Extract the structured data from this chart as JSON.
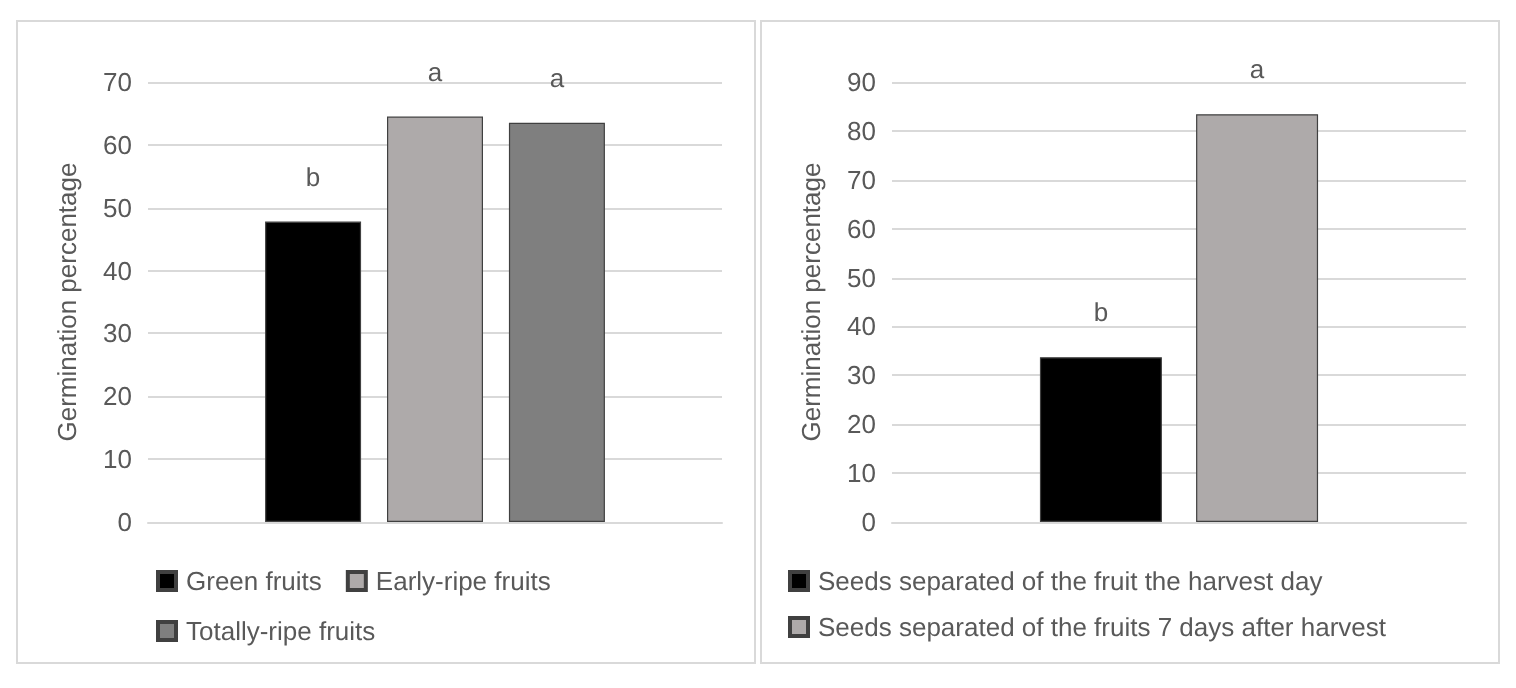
{
  "chart_data": [
    {
      "type": "bar",
      "ylabel": "Germination percentage",
      "categories": [
        null
      ],
      "ylim": [
        0,
        70
      ],
      "yticks": [
        0,
        10,
        20,
        30,
        40,
        50,
        60,
        70
      ],
      "grid": "y",
      "legend": "bottom",
      "series": [
        {
          "name": "Green fruits",
          "color": "#000000",
          "values": [
            47.8
          ],
          "value_labels": [
            "b"
          ]
        },
        {
          "name": "Early-ripe fruits",
          "color": "#aeaaaa",
          "values": [
            64.5
          ],
          "value_labels": [
            "a"
          ]
        },
        {
          "name": "Totally-ripe fruits",
          "color": "#7f7f7f",
          "values": [
            63.5
          ],
          "value_labels": [
            "a"
          ]
        }
      ]
    },
    {
      "type": "bar",
      "ylabel": "Germination percentage",
      "categories": [
        null
      ],
      "ylim": [
        0,
        90
      ],
      "yticks": [
        0,
        10,
        20,
        30,
        40,
        50,
        60,
        70,
        80,
        90
      ],
      "grid": "y",
      "legend": "bottom",
      "series": [
        {
          "name": "Seeds separated of the fruit the harvest day",
          "color": "#000000",
          "values": [
            33.7
          ],
          "value_labels": [
            "b"
          ]
        },
        {
          "name": "Seeds separated of the fruits 7 days after harvest",
          "color": "#aeaaaa",
          "values": [
            83.4
          ],
          "value_labels": [
            "a"
          ]
        }
      ]
    }
  ]
}
